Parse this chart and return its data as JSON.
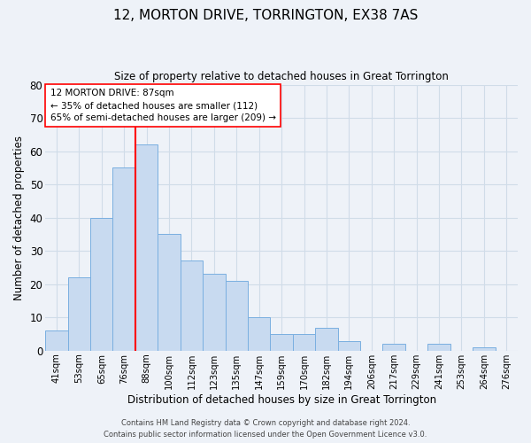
{
  "title": "12, MORTON DRIVE, TORRINGTON, EX38 7AS",
  "subtitle": "Size of property relative to detached houses in Great Torrington",
  "xlabel": "Distribution of detached houses by size in Great Torrington",
  "ylabel": "Number of detached properties",
  "bin_labels": [
    "41sqm",
    "53sqm",
    "65sqm",
    "76sqm",
    "88sqm",
    "100sqm",
    "112sqm",
    "123sqm",
    "135sqm",
    "147sqm",
    "159sqm",
    "170sqm",
    "182sqm",
    "194sqm",
    "206sqm",
    "217sqm",
    "229sqm",
    "241sqm",
    "253sqm",
    "264sqm",
    "276sqm"
  ],
  "bar_heights": [
    6,
    22,
    40,
    55,
    62,
    35,
    27,
    23,
    21,
    10,
    5,
    5,
    7,
    3,
    0,
    2,
    0,
    2,
    0,
    1,
    0
  ],
  "bar_color": "#c8daf0",
  "bar_edge_color": "#7aafe0",
  "vline_color": "red",
  "vline_x_index": 4,
  "annotation_text": "12 MORTON DRIVE: 87sqm\n← 35% of detached houses are smaller (112)\n65% of semi-detached houses are larger (209) →",
  "annotation_box_edgecolor": "red",
  "ylim": [
    0,
    80
  ],
  "yticks": [
    0,
    10,
    20,
    30,
    40,
    50,
    60,
    70,
    80
  ],
  "grid_color": "#d0dce8",
  "background_color": "#eef2f8",
  "footer_line1": "Contains HM Land Registry data © Crown copyright and database right 2024.",
  "footer_line2": "Contains public sector information licensed under the Open Government Licence v3.0."
}
